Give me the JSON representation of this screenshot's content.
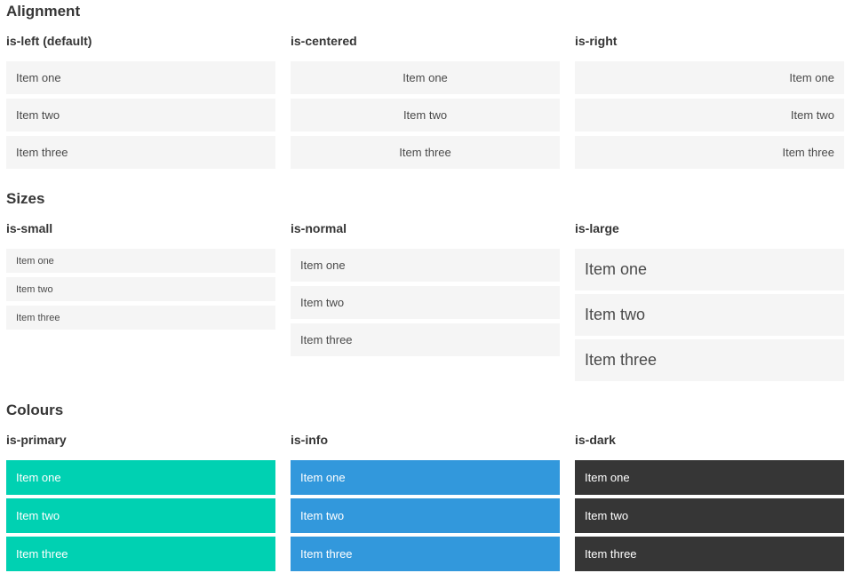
{
  "colors": {
    "page_bg": "#ffffff",
    "heading_text": "#363636",
    "item_bg": "#f5f5f5",
    "item_text": "#4a4a4a",
    "primary": "#00d1b2",
    "info": "#3298dc",
    "dark": "#363636",
    "colored_item_text": "#ffffff"
  },
  "sections": [
    {
      "title": "Alignment",
      "columns": [
        {
          "heading": "is-left (default)",
          "variant": "left",
          "items": [
            "Item one",
            "Item two",
            "Item three"
          ]
        },
        {
          "heading": "is-centered",
          "variant": "centered",
          "items": [
            "Item one",
            "Item two",
            "Item three"
          ]
        },
        {
          "heading": "is-right",
          "variant": "right",
          "items": [
            "Item one",
            "Item two",
            "Item three"
          ]
        }
      ]
    },
    {
      "title": "Sizes",
      "columns": [
        {
          "heading": "is-small",
          "variant": "small",
          "items": [
            "Item one",
            "Item two",
            "Item three"
          ]
        },
        {
          "heading": "is-normal",
          "variant": "normal",
          "items": [
            "Item one",
            "Item two",
            "Item three"
          ]
        },
        {
          "heading": "is-large",
          "variant": "large",
          "items": [
            "Item one",
            "Item two",
            "Item three"
          ]
        }
      ]
    },
    {
      "title": "Colours",
      "columns": [
        {
          "heading": "is-primary",
          "variant": "primary",
          "items": [
            "Item one",
            "Item two",
            "Item three"
          ]
        },
        {
          "heading": "is-info",
          "variant": "info",
          "items": [
            "Item one",
            "Item two",
            "Item three"
          ]
        },
        {
          "heading": "is-dark",
          "variant": "dark",
          "items": [
            "Item one",
            "Item two",
            "Item three"
          ]
        }
      ]
    }
  ]
}
